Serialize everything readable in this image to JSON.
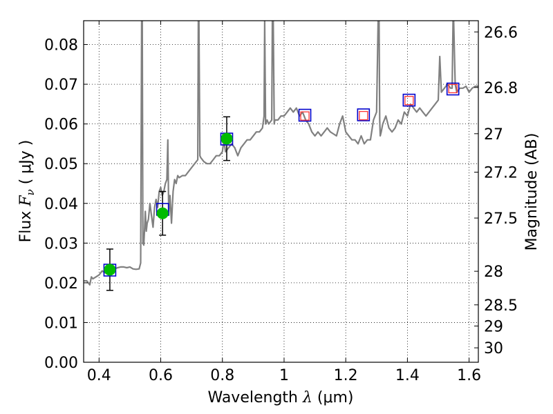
{
  "chart_data": {
    "type": "line",
    "title": "",
    "xlabel_text": "Wavelength ",
    "xlabel_symbol": "λ",
    "xlabel_units": " (μm)",
    "ylabel_text": "Flux ",
    "ylabel_symbol": "F",
    "ylabel_sub": "ν",
    "ylabel_units": " ( μJy )",
    "y2label": "Magnitude (AB)",
    "xlim": [
      0.35,
      1.63
    ],
    "ylim": [
      0.0,
      0.086
    ],
    "grid": true,
    "xticks": [
      {
        "v": 0.4,
        "label": "0.4"
      },
      {
        "v": 0.6,
        "label": "0.6"
      },
      {
        "v": 0.8,
        "label": "0.8"
      },
      {
        "v": 1.0,
        "label": "1"
      },
      {
        "v": 1.2,
        "label": "1.2"
      },
      {
        "v": 1.4,
        "label": "1.4"
      },
      {
        "v": 1.6,
        "label": "1.6"
      }
    ],
    "yticks": [
      {
        "v": 0.0,
        "label": "0.00"
      },
      {
        "v": 0.01,
        "label": "0.01"
      },
      {
        "v": 0.02,
        "label": "0.02"
      },
      {
        "v": 0.03,
        "label": "0.03"
      },
      {
        "v": 0.04,
        "label": "0.04"
      },
      {
        "v": 0.05,
        "label": "0.05"
      },
      {
        "v": 0.06,
        "label": "0.06"
      },
      {
        "v": 0.07,
        "label": "0.07"
      },
      {
        "v": 0.08,
        "label": "0.08"
      }
    ],
    "y2ticks": [
      {
        "mag": 26.6,
        "label": "26.6"
      },
      {
        "mag": 26.8,
        "label": "26.8"
      },
      {
        "mag": 27.0,
        "label": "27"
      },
      {
        "mag": 27.2,
        "label": "27.2"
      },
      {
        "mag": 27.5,
        "label": "27.5"
      },
      {
        "mag": 28.0,
        "label": "28"
      },
      {
        "mag": 28.5,
        "label": "28.5"
      },
      {
        "mag": 29.0,
        "label": "29"
      },
      {
        "mag": 30.0,
        "label": "30"
      }
    ],
    "colors": {
      "sed": "#808080",
      "model_box": "#0000cc",
      "observed": "#00bb00",
      "upper_box": "#ff3333",
      "errorbar": "#000000"
    },
    "series": [
      {
        "kind": "sed",
        "x": [
          0.35,
          0.36,
          0.37,
          0.375,
          0.38,
          0.39,
          0.4,
          0.41,
          0.42,
          0.43,
          0.44,
          0.45,
          0.46,
          0.47,
          0.48,
          0.49,
          0.5,
          0.51,
          0.52,
          0.53,
          0.535,
          0.538,
          0.54,
          0.542,
          0.545,
          0.548,
          0.55,
          0.553,
          0.556,
          0.56,
          0.565,
          0.57,
          0.575,
          0.58,
          0.585,
          0.59,
          0.595,
          0.6,
          0.605,
          0.61,
          0.615,
          0.62,
          0.623,
          0.626,
          0.63,
          0.635,
          0.64,
          0.645,
          0.65,
          0.655,
          0.66,
          0.67,
          0.68,
          0.69,
          0.7,
          0.71,
          0.72,
          0.722,
          0.724,
          0.727,
          0.73,
          0.74,
          0.75,
          0.76,
          0.77,
          0.78,
          0.79,
          0.8,
          0.805,
          0.81,
          0.82,
          0.83,
          0.84,
          0.85,
          0.86,
          0.87,
          0.88,
          0.89,
          0.9,
          0.91,
          0.92,
          0.93,
          0.935,
          0.937,
          0.94,
          0.945,
          0.95,
          0.96,
          0.962,
          0.965,
          0.968,
          0.97,
          0.98,
          0.99,
          1.0,
          1.01,
          1.02,
          1.03,
          1.04,
          1.05,
          1.06,
          1.07,
          1.08,
          1.09,
          1.1,
          1.11,
          1.12,
          1.13,
          1.14,
          1.15,
          1.16,
          1.17,
          1.18,
          1.19,
          1.2,
          1.21,
          1.22,
          1.23,
          1.24,
          1.25,
          1.26,
          1.27,
          1.28,
          1.29,
          1.3,
          1.305,
          1.308,
          1.31,
          1.312,
          1.315,
          1.32,
          1.33,
          1.34,
          1.35,
          1.36,
          1.37,
          1.38,
          1.39,
          1.4,
          1.41,
          1.42,
          1.43,
          1.44,
          1.45,
          1.46,
          1.47,
          1.48,
          1.49,
          1.5,
          1.505,
          1.51,
          1.52,
          1.53,
          1.54,
          1.545,
          1.548,
          1.55,
          1.555,
          1.56,
          1.57,
          1.58,
          1.59,
          1.6,
          1.61,
          1.62,
          1.63
        ],
        "y": [
          0.0205,
          0.0205,
          0.0195,
          0.0215,
          0.021,
          0.0215,
          0.022,
          0.023,
          0.0225,
          0.0235,
          0.0235,
          0.0235,
          0.0238,
          0.024,
          0.024,
          0.0238,
          0.024,
          0.0235,
          0.0234,
          0.0235,
          0.025,
          0.086,
          0.086,
          0.03,
          0.0295,
          0.034,
          0.038,
          0.033,
          0.035,
          0.036,
          0.04,
          0.037,
          0.034,
          0.039,
          0.041,
          0.039,
          0.043,
          0.044,
          0.042,
          0.043,
          0.045,
          0.046,
          0.056,
          0.037,
          0.042,
          0.035,
          0.043,
          0.046,
          0.045,
          0.047,
          0.0465,
          0.047,
          0.047,
          0.048,
          0.049,
          0.05,
          0.051,
          0.086,
          0.086,
          0.052,
          0.0515,
          0.0505,
          0.05,
          0.05,
          0.051,
          0.052,
          0.052,
          0.053,
          0.056,
          0.053,
          0.054,
          0.055,
          0.054,
          0.052,
          0.054,
          0.055,
          0.056,
          0.056,
          0.057,
          0.058,
          0.058,
          0.059,
          0.062,
          0.086,
          0.06,
          0.061,
          0.06,
          0.061,
          0.086,
          0.086,
          0.06,
          0.061,
          0.061,
          0.062,
          0.062,
          0.063,
          0.064,
          0.063,
          0.064,
          0.062,
          0.063,
          0.061,
          0.06,
          0.058,
          0.057,
          0.058,
          0.057,
          0.058,
          0.059,
          0.058,
          0.0575,
          0.057,
          0.06,
          0.062,
          0.058,
          0.057,
          0.056,
          0.056,
          0.055,
          0.057,
          0.055,
          0.056,
          0.056,
          0.061,
          0.063,
          0.086,
          0.086,
          0.061,
          0.057,
          0.058,
          0.06,
          0.062,
          0.059,
          0.058,
          0.059,
          0.061,
          0.06,
          0.063,
          0.062,
          0.065,
          0.064,
          0.063,
          0.064,
          0.063,
          0.062,
          0.063,
          0.064,
          0.065,
          0.066,
          0.077,
          0.068,
          0.069,
          0.07,
          0.069,
          0.069,
          0.086,
          0.086,
          0.07,
          0.068,
          0.069,
          0.069,
          0.0695,
          0.068,
          0.069,
          0.0695,
          0.0695
        ]
      },
      {
        "kind": "model_photometry",
        "x": [
          0.435,
          0.606,
          0.814,
          1.0675,
          1.2575,
          1.4055,
          1.5475
        ],
        "y": [
          0.0232,
          0.0385,
          0.0562,
          0.0622,
          0.0623,
          0.066,
          0.0688
        ]
      },
      {
        "kind": "observed_photometry",
        "x": [
          0.435,
          0.606,
          0.814
        ],
        "y": [
          0.0233,
          0.0375,
          0.0563
        ],
        "err": [
          0.0052,
          0.0055,
          0.0055
        ]
      },
      {
        "kind": "nondetection_photometry",
        "x": [
          1.0675,
          1.2575,
          1.4055,
          1.5475
        ],
        "y": [
          0.062,
          0.0621,
          0.0659,
          0.0689
        ]
      }
    ]
  }
}
